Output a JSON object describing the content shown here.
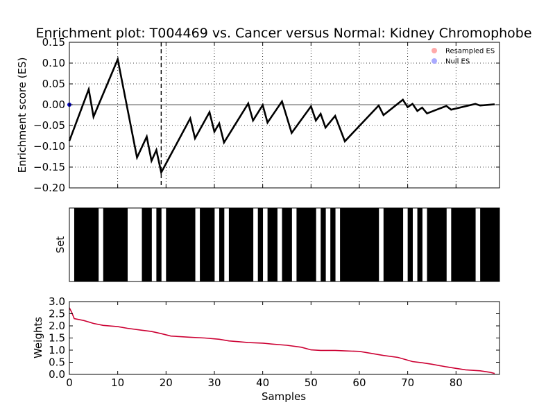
{
  "chart_data": {
    "title": "Enrichment plot: T004469 vs. Cancer versus Normal: Kidney Chromophobe",
    "xlabel": "Samples",
    "panels": [
      {
        "id": "es",
        "type": "line",
        "ylabel": "Enrichment score (ES)",
        "xlim": [
          0,
          89
        ],
        "ylim": [
          -0.2,
          0.15
        ],
        "yticks": [
          -0.2,
          -0.15,
          -0.1,
          -0.05,
          0.0,
          0.05,
          0.1,
          0.15
        ],
        "ytick_labels": [
          "−0.20",
          "−0.15",
          "−0.10",
          "−0.05",
          "0.00",
          "0.05",
          "0.10",
          "0.15"
        ],
        "xticks": [
          0,
          10,
          20,
          30,
          40,
          50,
          60,
          70,
          80
        ],
        "grid": true,
        "zero_line": 0.0,
        "peak_marker_x": 19,
        "legend_position": "top-right",
        "legend": [
          {
            "label": "Resampled ES",
            "color": "#ffaaaa"
          },
          {
            "label": "Null ES",
            "color": "#aaaaff"
          }
        ],
        "series": [
          {
            "color": "#000000",
            "x": [
              0,
              4,
              5,
              10,
              14,
              16,
              17,
              18,
              19,
              25,
              26,
              29,
              30,
              31,
              32,
              37,
              38,
              40,
              41,
              44,
              46,
              50,
              51,
              52,
              53,
              55,
              57,
              64,
              65,
              69,
              70,
              71,
              72,
              73,
              74,
              78,
              79,
              84,
              85,
              88
            ],
            "values": [
              -0.087,
              0.037,
              -0.029,
              0.109,
              -0.127,
              -0.077,
              -0.135,
              -0.109,
              -0.163,
              -0.033,
              -0.081,
              -0.018,
              -0.065,
              -0.045,
              -0.091,
              0.003,
              -0.038,
              -0.001,
              -0.043,
              0.008,
              -0.068,
              -0.004,
              -0.038,
              -0.022,
              -0.055,
              -0.027,
              -0.088,
              -0.002,
              -0.025,
              0.012,
              -0.006,
              0.002,
              -0.015,
              -0.007,
              -0.021,
              -0.003,
              -0.012,
              0.002,
              -0.002,
              0.001
            ]
          }
        ],
        "null_points": [
          {
            "x": 0,
            "y": 0.0,
            "color": "#0000cc"
          }
        ]
      },
      {
        "id": "set",
        "type": "barcode",
        "ylabel": "Set",
        "xlim": [
          0,
          89
        ],
        "members": [
          1,
          2,
          3,
          4,
          5,
          7,
          8,
          9,
          10,
          11,
          15,
          16,
          18,
          20,
          21,
          22,
          23,
          24,
          25,
          27,
          28,
          29,
          31,
          33,
          34,
          35,
          36,
          37,
          39,
          41,
          42,
          44,
          45,
          47,
          48,
          49,
          50,
          52,
          54,
          56,
          57,
          58,
          59,
          60,
          61,
          62,
          63,
          65,
          66,
          67,
          68,
          70,
          72,
          74,
          75,
          76,
          77,
          79,
          80,
          81,
          82,
          83,
          85,
          86,
          87,
          88
        ]
      },
      {
        "id": "weights",
        "type": "line",
        "ylabel": "Weights",
        "xlim": [
          0,
          89
        ],
        "ylim": [
          0.0,
          3.0
        ],
        "yticks": [
          0.0,
          0.5,
          1.0,
          1.5,
          2.0,
          2.5,
          3.0
        ],
        "ytick_labels": [
          "0.0",
          "0.5",
          "1.0",
          "1.5",
          "2.0",
          "2.5",
          "3.0"
        ],
        "xticks": [
          0,
          10,
          20,
          30,
          40,
          50,
          60,
          70,
          80
        ],
        "xtick_labels": [
          "0",
          "10",
          "20",
          "30",
          "40",
          "50",
          "60",
          "70",
          "80"
        ],
        "series": [
          {
            "color": "#cc0033",
            "x": [
              0,
              0.5,
              1,
              3,
              5,
              7,
              10,
              12,
              15,
              17,
              19,
              21,
              25,
              28,
              31,
              33,
              35,
              37,
              40,
              42,
              45,
              48,
              50,
              52,
              55,
              57,
              60,
              63,
              65,
              68,
              71,
              73,
              75,
              78,
              80,
              82,
              85,
              87,
              88
            ],
            "values": [
              2.75,
              2.55,
              2.3,
              2.22,
              2.1,
              2.02,
              1.97,
              1.9,
              1.82,
              1.77,
              1.68,
              1.58,
              1.53,
              1.5,
              1.45,
              1.38,
              1.35,
              1.31,
              1.29,
              1.25,
              1.2,
              1.12,
              1.01,
              0.99,
              0.99,
              0.97,
              0.95,
              0.85,
              0.78,
              0.7,
              0.53,
              0.48,
              0.42,
              0.31,
              0.25,
              0.19,
              0.15,
              0.09,
              0.04
            ]
          }
        ]
      }
    ]
  }
}
